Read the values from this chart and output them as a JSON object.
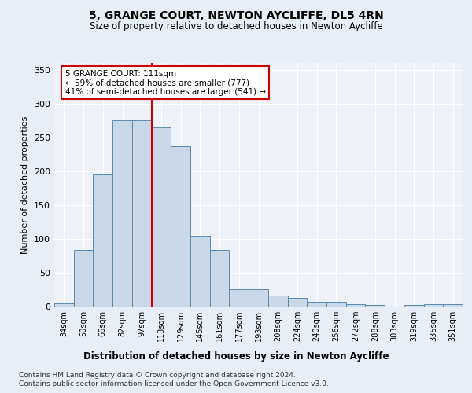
{
  "title1": "5, GRANGE COURT, NEWTON AYCLIFFE, DL5 4RN",
  "title2": "Size of property relative to detached houses in Newton Aycliffe",
  "xlabel": "Distribution of detached houses by size in Newton Aycliffe",
  "ylabel": "Number of detached properties",
  "bar_labels": [
    "34sqm",
    "50sqm",
    "66sqm",
    "82sqm",
    "97sqm",
    "113sqm",
    "129sqm",
    "145sqm",
    "161sqm",
    "177sqm",
    "193sqm",
    "208sqm",
    "224sqm",
    "240sqm",
    "256sqm",
    "272sqm",
    "288sqm",
    "303sqm",
    "319sqm",
    "335sqm",
    "351sqm"
  ],
  "bar_values": [
    5,
    84,
    195,
    275,
    275,
    265,
    237,
    104,
    84,
    25,
    25,
    16,
    13,
    7,
    7,
    4,
    2,
    0,
    2,
    3,
    3
  ],
  "bar_color": "#c8d8e8",
  "bar_edge_color": "#5a8ab0",
  "vline_x": 4.5,
  "vline_color": "#cc0000",
  "annotation_text": "5 GRANGE COURT: 111sqm\n← 59% of detached houses are smaller (777)\n41% of semi-detached houses are larger (541) →",
  "annotation_box_color": "#ffffff",
  "annotation_box_edge": "#cc0000",
  "ylim": [
    0,
    360
  ],
  "yticks": [
    0,
    50,
    100,
    150,
    200,
    250,
    300,
    350
  ],
  "footer1": "Contains HM Land Registry data © Crown copyright and database right 2024.",
  "footer2": "Contains public sector information licensed under the Open Government Licence v3.0.",
  "bg_color": "#e8eef5",
  "plot_bg_color": "#eef2f8"
}
